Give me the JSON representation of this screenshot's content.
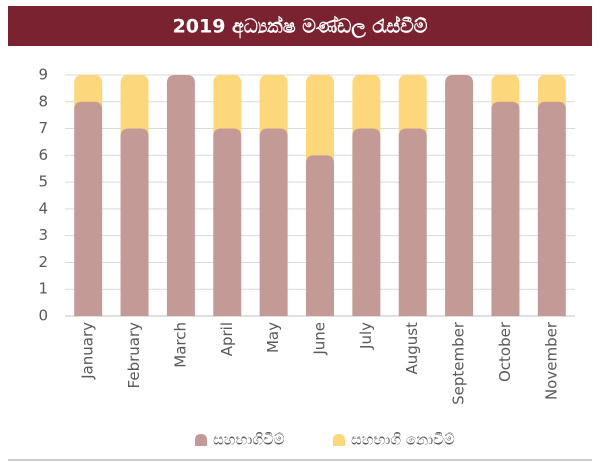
{
  "chart_data": {
    "type": "stacked_bar",
    "title": "2019 අධ්‍යක්ෂ මණ්ඩල රැස්වීම්",
    "categories": [
      "January",
      "February",
      "March",
      "April",
      "May",
      "June",
      "July",
      "August",
      "September",
      "October",
      "November"
    ],
    "series": [
      {
        "name": "සහභාගිවීම්",
        "color": "#c49a96",
        "values": [
          8,
          7,
          9,
          7,
          7,
          6,
          7,
          7,
          9,
          8,
          8
        ]
      },
      {
        "name": "සහභාගි නොවීම්",
        "color": "#fdd77c",
        "values": [
          1,
          2,
          0,
          2,
          2,
          3,
          2,
          2,
          0,
          1,
          1
        ]
      }
    ],
    "ylim": [
      0,
      9
    ],
    "yticks": [
      0,
      1,
      2,
      3,
      4,
      5,
      6,
      7,
      8,
      9
    ],
    "grid": true,
    "legend": "bottom"
  }
}
